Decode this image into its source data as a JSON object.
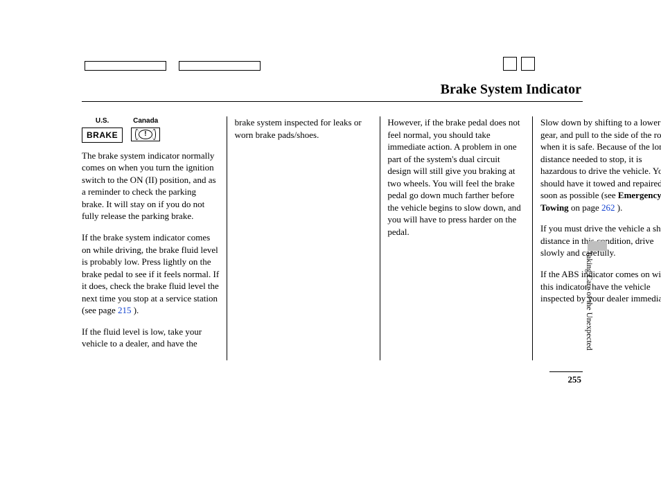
{
  "title": "Brake System Indicator",
  "indicator": {
    "us_label": "U.S.",
    "us_text": "BRAKE",
    "canada_label": "Canada",
    "canada_symbol": "!"
  },
  "col1": {
    "p1": "The brake system indicator normally comes on when you turn the ignition switch to the ON (II) position, and as a reminder to check the parking brake. It will stay on if you do not fully release the parking brake.",
    "p2a": "If the brake system indicator comes on while driving, the brake fluid level is probably low. Press lightly on the brake pedal to see if it feels normal. If it does, check the brake fluid level the next time you stop at a service station (see page ",
    "p2_link": "215",
    "p2b": " ).",
    "p3": "If the fluid level is low, take your vehicle to a dealer, and have the brake system inspected for leaks or worn brake pads/shoes."
  },
  "col2": {
    "p1": "However, if the brake pedal does not feel normal, you should take immediate action. A problem in one part of the system's dual circuit design will still give you braking at two wheels. You will feel the brake pedal go down much farther before the vehicle begins to slow down, and you will have to press harder on the pedal."
  },
  "col3": {
    "p1a": "Slow down by shifting to a lower gear, and pull to the side of the road when it is safe. Because of the long distance needed to stop, it is hazardous to drive the vehicle. You should have it towed and repaired as soon as possible (see ",
    "p1_bold": "Emergency Towing",
    "p1b": " on page ",
    "p1_link": "262",
    "p1c": " ).",
    "p2": "If you must drive the vehicle a short distance in this condition, drive slowly and carefully.",
    "p3": "If the ABS indicator comes on with this indicator, have the vehicle inspected by your dealer immediately."
  },
  "side_section": "Taking Care of the Unexpected",
  "page_number": "255"
}
